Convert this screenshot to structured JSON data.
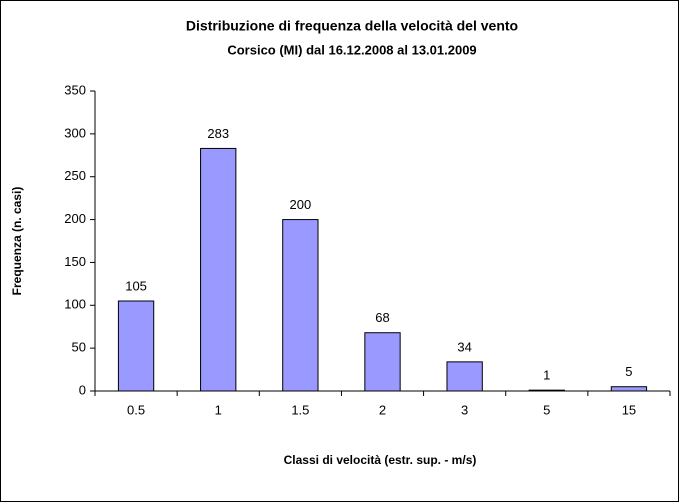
{
  "chart_data": {
    "type": "bar",
    "title": "Distribuzione di frequenza della velocità del vento",
    "subtitle": "Corsico (MI) dal 16.12.2008 al 13.01.2009",
    "x_label": "Classi di velocità (estr. sup. - m/s)",
    "y_label": "Frequenza (n. casi)",
    "categories": [
      "0.5",
      "1",
      "1.5",
      "2",
      "3",
      "5",
      "15"
    ],
    "values": [
      105,
      283,
      200,
      68,
      34,
      1,
      5
    ],
    "color": "#9999ff",
    "ylim": [
      0,
      350
    ],
    "yticks": [
      0,
      50,
      100,
      150,
      200,
      250,
      300,
      350
    ],
    "grid": false
  }
}
